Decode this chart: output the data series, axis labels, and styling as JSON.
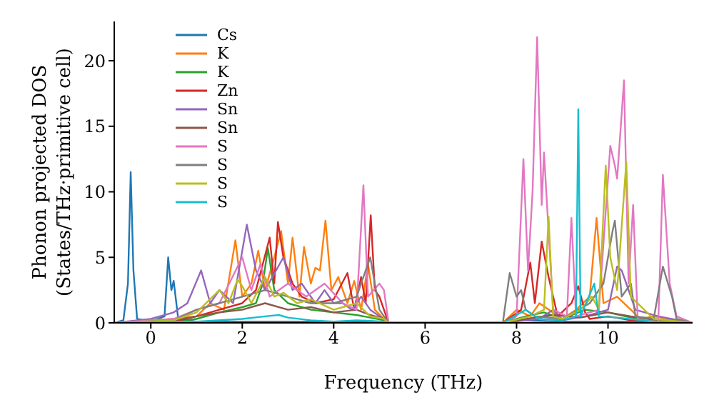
{
  "chart_data": {
    "type": "line",
    "xlabel": "Frequency (THz)",
    "ylabel": "Phonon projected DOS\n(States/THz·primitive cell)",
    "xlim": [
      -0.8,
      11.85
    ],
    "ylim": [
      0,
      23
    ],
    "xticks": [
      0,
      2,
      4,
      6,
      8,
      10
    ],
    "yticks": [
      0,
      5,
      10,
      15,
      20
    ],
    "grid": false,
    "legend": "top left",
    "series": [
      {
        "name": "Cs",
        "color": "#1f77b4",
        "x": [
          -0.8,
          -0.6,
          -0.5,
          -0.44,
          -0.38,
          -0.3,
          0,
          0.3,
          0.38,
          0.45,
          0.5,
          0.6,
          1,
          2,
          3,
          4,
          5.1,
          5.2,
          7.7,
          8,
          9,
          10,
          11,
          11.85
        ],
        "values": [
          0,
          0.2,
          3,
          11.5,
          4,
          0.3,
          0.1,
          0.5,
          5,
          2.5,
          3.2,
          0.3,
          0.1,
          0.1,
          0.1,
          0.1,
          0.1,
          0,
          0,
          0.2,
          0.1,
          0.1,
          0.1,
          0
        ]
      },
      {
        "name": "K",
        "color": "#ff7f0e",
        "x": [
          -0.8,
          0,
          0.5,
          1,
          1.3,
          1.6,
          1.85,
          2,
          2.2,
          2.35,
          2.5,
          2.7,
          2.85,
          3,
          3.1,
          3.25,
          3.35,
          3.5,
          3.6,
          3.7,
          3.82,
          3.95,
          4.1,
          4.3,
          4.45,
          4.6,
          4.75,
          4.9,
          5.1,
          5.2,
          7.7,
          8,
          8.3,
          8.5,
          9,
          9.3,
          9.6,
          9.75,
          9.9,
          10.2,
          10.5,
          10.7,
          11,
          11.85
        ],
        "values": [
          0,
          0.2,
          0.3,
          0.5,
          1.5,
          1,
          6.3,
          2,
          3,
          5.5,
          2.5,
          5,
          7,
          3,
          6.5,
          2,
          5.8,
          3,
          4.2,
          4,
          7.8,
          2.5,
          3.5,
          1.5,
          3.2,
          1,
          4.5,
          1,
          0.3,
          0,
          0,
          1,
          0.5,
          1.5,
          0.3,
          1,
          2,
          8,
          1.5,
          2,
          1,
          0.3,
          0.5,
          0
        ]
      },
      {
        "name": "K",
        "color": "#2ca02c",
        "x": [
          -0.8,
          0.5,
          1,
          1.5,
          2,
          2.3,
          2.45,
          2.56,
          2.7,
          3,
          3.5,
          4,
          4.5,
          5.1,
          5.2,
          7.7,
          8.2,
          8.6,
          9,
          9.5,
          10,
          10.5,
          11.85
        ],
        "values": [
          0,
          0.1,
          0.3,
          0.8,
          1.2,
          1.5,
          3,
          5.7,
          2.5,
          1.5,
          1,
          0.8,
          0.6,
          0.2,
          0,
          0,
          0.5,
          0.8,
          0.3,
          1,
          0.8,
          0.4,
          0
        ]
      },
      {
        "name": "Zn",
        "color": "#d62728",
        "x": [
          -0.8,
          0.5,
          1,
          1.5,
          2,
          2.3,
          2.45,
          2.6,
          2.7,
          2.78,
          2.9,
          3.1,
          3.3,
          3.6,
          4,
          4.3,
          4.45,
          4.6,
          4.7,
          4.81,
          4.9,
          5.0,
          5.2,
          7.7,
          8.1,
          8.3,
          8.4,
          8.55,
          8.7,
          8.9,
          9.2,
          9.35,
          9.5,
          9.6,
          10,
          10.5,
          11.85
        ],
        "values": [
          0,
          0.1,
          0.5,
          1,
          1.5,
          2.5,
          4.5,
          6.5,
          3,
          7.7,
          5,
          3,
          2,
          1.5,
          1.8,
          3.8,
          1,
          3.5,
          1.5,
          8.2,
          2.5,
          2,
          0,
          0,
          1,
          4.6,
          1.5,
          6.2,
          3.5,
          0.5,
          1.5,
          2.8,
          0.8,
          0.3,
          0.5,
          0.2,
          0
        ]
      },
      {
        "name": "Sn",
        "color": "#9467bd",
        "x": [
          -0.8,
          0,
          0.5,
          0.8,
          1.1,
          1.3,
          1.5,
          1.8,
          2.1,
          2.3,
          2.5,
          2.9,
          3.1,
          3.3,
          3.6,
          3.8,
          4,
          4.2,
          4.4,
          4.6,
          4.8,
          5.0,
          5.2,
          7.7,
          8.5,
          8.8,
          9,
          9.5,
          10,
          10.2,
          10.3,
          10.6,
          11.1,
          11.85
        ],
        "values": [
          0,
          0.3,
          0.8,
          1.5,
          4,
          1.5,
          2.5,
          1.5,
          7.5,
          4,
          2.5,
          5,
          2.5,
          3,
          1.5,
          2.5,
          1.5,
          1.5,
          1,
          2,
          1,
          0.5,
          0,
          0,
          0.3,
          1,
          0.2,
          0.5,
          1,
          4.3,
          4,
          1,
          0.5,
          0
        ]
      },
      {
        "name": "Sn",
        "color": "#8c564b",
        "x": [
          -0.8,
          0.5,
          1,
          1.5,
          2,
          2.5,
          3,
          3.5,
          4,
          4.5,
          4.8,
          5.1,
          5.2,
          7.7,
          8.2,
          8.8,
          9.4,
          10,
          10.5,
          11,
          11.85
        ],
        "values": [
          0,
          0.2,
          0.5,
          0.8,
          1,
          1.5,
          1,
          1.2,
          0.8,
          1,
          0.6,
          0.3,
          0,
          0,
          0.3,
          0.6,
          0.4,
          0.8,
          0.5,
          0.3,
          0
        ]
      },
      {
        "name": "S",
        "color": "#e377c2",
        "x": [
          -0.8,
          0.5,
          1,
          1.5,
          2,
          2.2,
          2.4,
          2.6,
          3,
          3.4,
          3.8,
          4.2,
          4.5,
          4.65,
          4.75,
          5.0,
          5.1,
          5.2,
          7.7,
          8.0,
          8.15,
          8.25,
          8.35,
          8.45,
          8.55,
          8.6,
          8.8,
          9.1,
          9.2,
          9.3,
          9.8,
          10.05,
          10.15,
          10.2,
          10.35,
          10.45,
          10.55,
          10.65,
          11.1,
          11.2,
          11.35,
          11.5,
          11.85
        ],
        "values": [
          0,
          0.3,
          1,
          1.5,
          5,
          2.5,
          4.5,
          2,
          3,
          2,
          3,
          1.5,
          1,
          10.5,
          2,
          3,
          2.5,
          0,
          0,
          0.5,
          12.5,
          4,
          10,
          21.8,
          9,
          13,
          1,
          0.5,
          8,
          0.5,
          1,
          13.5,
          12,
          11,
          18.5,
          3,
          9,
          0.3,
          0,
          11.3,
          3,
          0.5,
          0
        ]
      },
      {
        "name": "S",
        "color": "#7f7f7f",
        "x": [
          -0.8,
          0.5,
          1,
          1.5,
          2,
          2.5,
          3,
          3.5,
          4,
          4.5,
          4.8,
          5.0,
          5.2,
          7.7,
          7.85,
          8.0,
          8.1,
          8.2,
          8.4,
          9,
          9.6,
          9.9,
          10.1,
          10.15,
          10.3,
          10.5,
          10.6,
          11,
          11.2,
          11.4,
          11.5,
          11.85
        ],
        "values": [
          0,
          0.2,
          1,
          1.5,
          2,
          2.5,
          2,
          1.5,
          1.5,
          2,
          5,
          1,
          0,
          0,
          3.8,
          2,
          2.5,
          1,
          0.5,
          0.3,
          1.5,
          3,
          7,
          7.8,
          2,
          3,
          0.5,
          0.3,
          4.3,
          2,
          0.3,
          0
        ]
      },
      {
        "name": "S",
        "color": "#bcbd22",
        "x": [
          -0.8,
          0.5,
          1,
          1.5,
          1.7,
          1.9,
          2,
          2.2,
          2.5,
          2.7,
          2.9,
          3.2,
          3.5,
          4,
          4.5,
          4.8,
          5.1,
          5.2,
          7.7,
          8.3,
          8.6,
          8.7,
          8.8,
          9,
          9.4,
          9.65,
          9.8,
          9.95,
          10.05,
          10.2,
          10.4,
          10.5,
          11,
          11.85
        ],
        "values": [
          0,
          0.2,
          0.8,
          2.5,
          1.5,
          3.3,
          2.8,
          1.5,
          3.5,
          2,
          2.3,
          1.5,
          1.8,
          1,
          1.5,
          0.5,
          0.3,
          0,
          0,
          0.5,
          1,
          8.1,
          0.5,
          0.3,
          1,
          2,
          1,
          12,
          5,
          2.5,
          12.3,
          2,
          0.3,
          0
        ]
      },
      {
        "name": "S",
        "color": "#17becf",
        "x": [
          -0.8,
          0.5,
          1,
          2,
          2.5,
          2.8,
          3,
          3.5,
          4,
          4.5,
          5.1,
          5.2,
          7.7,
          8.2,
          8.5,
          9,
          9.3,
          9.35,
          9.4,
          9.7,
          9.8,
          10.2,
          11,
          11.85
        ],
        "values": [
          0,
          0.1,
          0.1,
          0.3,
          0.5,
          0.6,
          0.4,
          0.2,
          0.1,
          0.2,
          0.1,
          0,
          0,
          1,
          0.3,
          0.2,
          0.5,
          16.3,
          0.5,
          3,
          0.5,
          0.4,
          0.1,
          0
        ]
      }
    ]
  }
}
